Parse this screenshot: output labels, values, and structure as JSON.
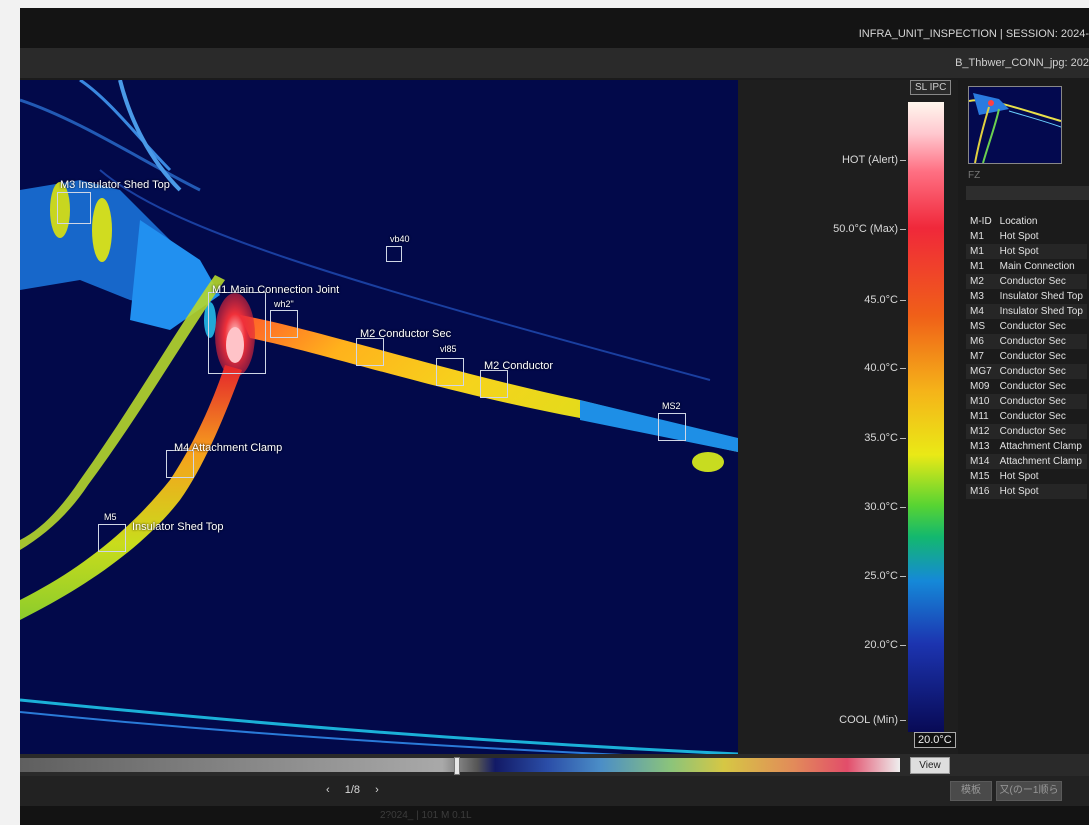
{
  "header": {
    "title": "INFRA_UNIT_INSPECTION | SESSION: 2024-",
    "file": "B_Thbwer_CONN_jpg: 202"
  },
  "image_labels": {
    "m3": "M3 Insulator Shed Top",
    "vb40": "vb40",
    "m1": "M1 Main Connection Joint",
    "wh2": "wh2\"",
    "m2a": "M2 Conductor Sec",
    "vl85": "vl85",
    "m2b": "M2 Conductor",
    "ms2": "MS2",
    "m4": "M4 Attachment Clamp",
    "m5_id": "M5",
    "m5_text": "Insulator Shed Top"
  },
  "scale": {
    "tag": "SL IPC",
    "ticks": [
      "HOT (Alert)",
      "50.0°C (Max)",
      "45.0°C",
      "40.0°C",
      "35.0°C",
      "30.0°C",
      "25.0°C",
      "20.0°C",
      "COOL (Min)"
    ],
    "min_value": "20.0°C",
    "gradient_colors": [
      "#fff7ee",
      "#ff7083",
      "#f0283a",
      "#f06018",
      "#f5b419",
      "#eae916",
      "#58d432",
      "#13b86e",
      "#1589d8",
      "#1c34b0",
      "#080a55"
    ]
  },
  "panel": {
    "filter_label": "FZ",
    "columns": [
      "M-ID",
      "Location"
    ],
    "rows": [
      [
        "M1",
        "Hot Spot"
      ],
      [
        "M1",
        "Hot Spot"
      ],
      [
        "M1",
        "Main Connection"
      ],
      [
        "M2",
        "Conductor Sec"
      ],
      [
        "M3",
        "Insulator Shed Top"
      ],
      [
        "M4",
        "Insulator Shed Top"
      ],
      [
        "MS",
        "Conductor Sec"
      ],
      [
        "M6",
        "Conductor Sec"
      ],
      [
        "M7",
        "Conductor Sec"
      ],
      [
        "MG7",
        "Conductor Sec"
      ],
      [
        "M09",
        "Conductor Sec"
      ],
      [
        "M10",
        "Conductor Sec"
      ],
      [
        "M11",
        "Conductor Sec"
      ],
      [
        "M12",
        "Conductor Sec"
      ],
      [
        "M13",
        "Attachment Clamp"
      ],
      [
        "M14",
        "Attachment Clamp"
      ],
      [
        "M15",
        "Hot Spot"
      ],
      [
        "M16",
        "Hot Spot"
      ]
    ]
  },
  "controls": {
    "view": "View",
    "page": "1/8",
    "prev": "‹",
    "next": "›",
    "btn1": "模板",
    "btn2": "又(のー1顺ら",
    "status": "2?024_ | 101 M 0.1L"
  }
}
